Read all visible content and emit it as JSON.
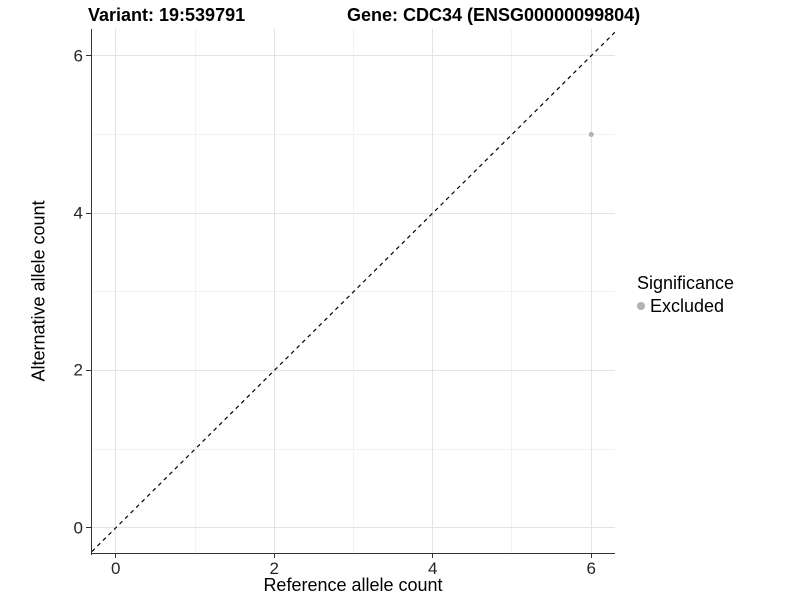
{
  "chart_data": {
    "type": "scatter",
    "titles": {
      "left": "Variant: 19:539791",
      "right": "Gene: CDC34 (ENSG00000099804)"
    },
    "xlabel": "Reference allele count",
    "ylabel": "Alternative allele count",
    "xlim": [
      -0.3,
      6.3
    ],
    "ylim": [
      -0.32,
      6.34
    ],
    "x_ticks": [
      0,
      2,
      4,
      6
    ],
    "y_ticks": [
      0,
      2,
      4,
      6
    ],
    "x_minor_ticks": [
      1,
      3,
      5
    ],
    "y_minor_ticks": [
      1,
      3,
      5
    ],
    "grid": true,
    "points": [
      {
        "x": 6,
        "y": 5,
        "series": "Excluded"
      }
    ],
    "reference_line": {
      "slope": 1,
      "intercept": 0,
      "style": "dashed",
      "color": "#000000"
    },
    "legend": {
      "title": "Significance",
      "position": "right",
      "entries": [
        {
          "label": "Excluded",
          "color": "#b3b3b3",
          "marker": "dot"
        }
      ]
    },
    "colors": {
      "point": "#b3b3b3",
      "grid_major": "#e4e4e4",
      "grid_minor": "#f2f2f2",
      "axis": "#333333",
      "tick_text": "#262626",
      "text": "#000000"
    }
  }
}
